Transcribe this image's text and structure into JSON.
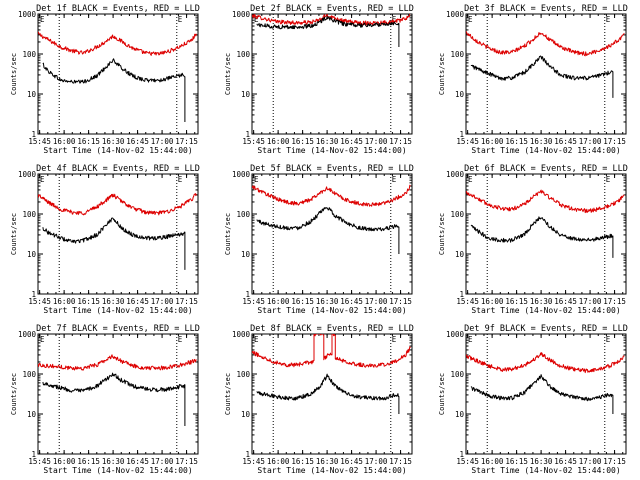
{
  "figure": {
    "colors": {
      "events": "#000000",
      "lld": "#dd0000",
      "axes": "#000000",
      "background": "#ffffff"
    }
  },
  "chart_data": [
    {
      "type": "line",
      "title": "Det 1f BLACK = Events, RED = LLD",
      "xlabel": "Start Time (14-Nov-02 15:44:00)",
      "ylabel": "Counts/sec",
      "xlim": [
        "15:44",
        "17:22"
      ],
      "ylim": [
        1,
        1000
      ],
      "yscale": "log",
      "x_tick_labels": [
        "15:45",
        "16:00",
        "16:15",
        "16:30",
        "16:45",
        "17:00",
        "17:15"
      ],
      "y_tick_labels": [
        "1",
        "10",
        "100",
        "1000"
      ],
      "corner_labels": {
        "left": "E",
        "right": "E"
      },
      "vertical_dotted_lines": [
        "15:57",
        "17:09"
      ],
      "series": [
        {
          "x": [
            "15:44",
            "15:50",
            "15:58",
            "16:05",
            "16:12",
            "16:20",
            "16:25",
            "16:30",
            "16:35",
            "16:42",
            "16:50",
            "16:58",
            "17:05",
            "17:12",
            "17:18",
            "17:21"
          ],
          "values": [
            320,
            230,
            150,
            120,
            105,
            150,
            200,
            280,
            210,
            140,
            105,
            100,
            120,
            160,
            220,
            320
          ]
        },
        {
          "x": [
            "15:47",
            "15:50",
            "15:58",
            "16:05",
            "16:12",
            "16:20",
            "16:25",
            "16:30",
            "16:35",
            "16:42",
            "16:50",
            "16:58",
            "17:05",
            "17:12",
            "17:14"
          ],
          "values": [
            55,
            38,
            22,
            20,
            20,
            28,
            45,
            70,
            45,
            28,
            22,
            22,
            25,
            30,
            2
          ]
        }
      ]
    },
    {
      "type": "line",
      "title": "Det 2f BLACK = Events, RED = LLD",
      "xlabel": "Start Time (14-Nov-02 15:44:00)",
      "ylabel": "Counts/sec",
      "xlim": [
        "15:44",
        "17:22"
      ],
      "ylim": [
        1,
        1000
      ],
      "yscale": "log",
      "x_tick_labels": [
        "15:45",
        "16:00",
        "16:15",
        "16:30",
        "16:45",
        "17:00",
        "17:15"
      ],
      "y_tick_labels": [
        "1",
        "10",
        "100",
        "1000"
      ],
      "corner_labels": {
        "left": "E",
        "right": "E"
      },
      "vertical_dotted_lines": [
        "15:57",
        "17:09"
      ],
      "series": [
        {
          "x": [
            "15:44",
            "15:50",
            "15:58",
            "16:05",
            "16:12",
            "16:20",
            "16:25",
            "16:30",
            "16:35",
            "16:42",
            "16:50",
            "16:58",
            "17:05",
            "17:12",
            "17:18",
            "17:21"
          ],
          "values": [
            900,
            800,
            650,
            620,
            600,
            620,
            700,
            950,
            780,
            650,
            600,
            600,
            620,
            650,
            750,
            1000
          ]
        },
        {
          "x": [
            "15:47",
            "15:50",
            "15:58",
            "16:05",
            "16:12",
            "16:20",
            "16:25",
            "16:30",
            "16:35",
            "16:42",
            "16:50",
            "16:58",
            "17:05",
            "17:12",
            "17:14"
          ],
          "values": [
            550,
            520,
            480,
            470,
            470,
            500,
            600,
            850,
            650,
            540,
            520,
            530,
            560,
            600,
            150
          ]
        }
      ]
    },
    {
      "type": "line",
      "title": "Det 3f BLACK = Events, RED = LLD",
      "xlabel": "Start Time (14-Nov-02 15:44:00)",
      "ylabel": "Counts/sec",
      "xlim": [
        "15:44",
        "17:22"
      ],
      "ylim": [
        1,
        1000
      ],
      "yscale": "log",
      "x_tick_labels": [
        "15:45",
        "16:00",
        "16:15",
        "16:30",
        "16:45",
        "17:00",
        "17:15"
      ],
      "y_tick_labels": [
        "1",
        "10",
        "100",
        "1000"
      ],
      "corner_labels": {
        "left": "E",
        "right": "E"
      },
      "vertical_dotted_lines": [
        "15:57",
        "17:09"
      ],
      "series": [
        {
          "x": [
            "15:44",
            "15:50",
            "15:58",
            "16:05",
            "16:12",
            "16:20",
            "16:25",
            "16:30",
            "16:35",
            "16:42",
            "16:50",
            "16:58",
            "17:05",
            "17:12",
            "17:18",
            "17:21"
          ],
          "values": [
            350,
            220,
            140,
            110,
            110,
            160,
            230,
            350,
            230,
            150,
            110,
            100,
            120,
            160,
            230,
            330
          ]
        },
        {
          "x": [
            "15:47",
            "15:50",
            "15:58",
            "16:05",
            "16:12",
            "16:20",
            "16:25",
            "16:30",
            "16:35",
            "16:42",
            "16:50",
            "16:58",
            "17:05",
            "17:12",
            "17:14"
          ],
          "values": [
            50,
            45,
            32,
            25,
            25,
            35,
            55,
            85,
            50,
            30,
            25,
            25,
            28,
            35,
            8
          ]
        }
      ]
    },
    {
      "type": "line",
      "title": "Det 4f BLACK = Events, RED = LLD",
      "xlabel": "Start Time (14-Nov-02 15:44:00)",
      "ylabel": "Counts/sec",
      "xlim": [
        "15:44",
        "17:22"
      ],
      "ylim": [
        1,
        1000
      ],
      "yscale": "log",
      "x_tick_labels": [
        "15:45",
        "16:00",
        "16:15",
        "16:30",
        "16:45",
        "17:00",
        "17:15"
      ],
      "y_tick_labels": [
        "1",
        "10",
        "100",
        "1000"
      ],
      "corner_labels": {
        "left": "E",
        "right": "E"
      },
      "vertical_dotted_lines": [
        "15:57",
        "17:09"
      ],
      "series": [
        {
          "x": [
            "15:44",
            "15:50",
            "15:58",
            "16:05",
            "16:12",
            "16:20",
            "16:25",
            "16:30",
            "16:35",
            "16:42",
            "16:50",
            "16:58",
            "17:05",
            "17:12",
            "17:18",
            "17:21"
          ],
          "values": [
            300,
            200,
            130,
            110,
            105,
            150,
            210,
            300,
            210,
            140,
            110,
            105,
            120,
            160,
            230,
            320
          ]
        },
        {
          "x": [
            "15:47",
            "15:50",
            "15:58",
            "16:05",
            "16:12",
            "16:20",
            "16:25",
            "16:30",
            "16:35",
            "16:42",
            "16:50",
            "16:58",
            "17:05",
            "17:12",
            "17:14"
          ],
          "values": [
            45,
            35,
            25,
            20,
            22,
            30,
            50,
            80,
            45,
            30,
            25,
            25,
            28,
            32,
            4
          ]
        }
      ]
    },
    {
      "type": "line",
      "title": "Det 5f BLACK = Events, RED = LLD",
      "xlabel": "Start Time (14-Nov-02 15:44:00)",
      "ylabel": "Counts/sec",
      "xlim": [
        "15:44",
        "17:22"
      ],
      "ylim": [
        1,
        1000
      ],
      "yscale": "log",
      "x_tick_labels": [
        "15:45",
        "16:00",
        "16:15",
        "16:30",
        "16:45",
        "17:00",
        "17:15"
      ],
      "y_tick_labels": [
        "1",
        "10",
        "100",
        "1000"
      ],
      "corner_labels": {
        "left": "E",
        "right": "E"
      },
      "vertical_dotted_lines": [
        "15:57",
        "17:09"
      ],
      "series": [
        {
          "x": [
            "15:44",
            "15:50",
            "15:58",
            "16:05",
            "16:12",
            "16:20",
            "16:25",
            "16:30",
            "16:35",
            "16:42",
            "16:50",
            "16:58",
            "17:05",
            "17:12",
            "17:18",
            "17:21"
          ],
          "values": [
            480,
            360,
            250,
            200,
            180,
            230,
            320,
            450,
            320,
            220,
            180,
            170,
            190,
            240,
            330,
            500
          ]
        },
        {
          "x": [
            "15:47",
            "15:50",
            "15:58",
            "16:05",
            "16:12",
            "16:20",
            "16:25",
            "16:30",
            "16:35",
            "16:42",
            "16:50",
            "16:58",
            "17:05",
            "17:12",
            "17:14"
          ],
          "values": [
            70,
            60,
            50,
            45,
            45,
            65,
            100,
            150,
            90,
            60,
            45,
            40,
            42,
            50,
            10
          ]
        }
      ]
    },
    {
      "type": "line",
      "title": "Det 6f BLACK = Events, RED = LLD",
      "xlabel": "Start Time (14-Nov-02 15:44:00)",
      "ylabel": "Counts/sec",
      "xlim": [
        "15:44",
        "17:22"
      ],
      "ylim": [
        1,
        1000
      ],
      "yscale": "log",
      "x_tick_labels": [
        "15:45",
        "16:00",
        "16:15",
        "16:30",
        "16:45",
        "17:00",
        "17:15"
      ],
      "y_tick_labels": [
        "1",
        "10",
        "100",
        "1000"
      ],
      "corner_labels": {
        "left": "E",
        "right": "E"
      },
      "vertical_dotted_lines": [
        "15:57",
        "17:09"
      ],
      "series": [
        {
          "x": [
            "15:44",
            "15:50",
            "15:58",
            "16:05",
            "16:12",
            "16:20",
            "16:25",
            "16:30",
            "16:35",
            "16:42",
            "16:50",
            "16:58",
            "17:05",
            "17:12",
            "17:18",
            "17:21"
          ],
          "values": [
            350,
            260,
            170,
            140,
            130,
            180,
            260,
            380,
            260,
            170,
            130,
            120,
            130,
            160,
            220,
            300
          ]
        },
        {
          "x": [
            "15:47",
            "15:50",
            "15:58",
            "16:05",
            "16:12",
            "16:20",
            "16:25",
            "16:30",
            "16:35",
            "16:42",
            "16:50",
            "16:58",
            "17:05",
            "17:12",
            "17:14"
          ],
          "values": [
            50,
            40,
            25,
            22,
            22,
            32,
            55,
            85,
            50,
            30,
            24,
            22,
            24,
            28,
            8
          ]
        }
      ]
    },
    {
      "type": "line",
      "title": "Det 7f BLACK = Events, RED = LLD",
      "xlabel": "Start Time (14-Nov-02 15:44:00)",
      "ylabel": "Counts/sec",
      "xlim": [
        "15:44",
        "17:22"
      ],
      "ylim": [
        1,
        1000
      ],
      "yscale": "log",
      "x_tick_labels": [
        "15:45",
        "16:00",
        "16:15",
        "16:30",
        "16:45",
        "17:00",
        "17:15"
      ],
      "y_tick_labels": [
        "1",
        "10",
        "100",
        "1000"
      ],
      "corner_labels": {
        "left": "E",
        "right": "E"
      },
      "vertical_dotted_lines": [
        "15:57",
        "17:09"
      ],
      "series": [
        {
          "x": [
            "15:44",
            "15:50",
            "15:58",
            "16:05",
            "16:12",
            "16:20",
            "16:25",
            "16:30",
            "16:35",
            "16:42",
            "16:50",
            "16:58",
            "17:05",
            "17:12",
            "17:18",
            "17:21"
          ],
          "values": [
            170,
            160,
            150,
            140,
            140,
            170,
            220,
            280,
            210,
            160,
            140,
            140,
            150,
            170,
            200,
            230
          ]
        },
        {
          "x": [
            "15:47",
            "15:50",
            "15:58",
            "16:05",
            "16:12",
            "16:20",
            "16:25",
            "16:30",
            "16:35",
            "16:42",
            "16:50",
            "16:58",
            "17:05",
            "17:12",
            "17:14"
          ],
          "values": [
            60,
            55,
            45,
            38,
            38,
            50,
            70,
            100,
            70,
            50,
            42,
            40,
            42,
            50,
            5
          ]
        }
      ]
    },
    {
      "type": "line",
      "title": "Det 8f BLACK = Events, RED = LLD",
      "xlabel": "Start Time (14-Nov-02 15:44:00)",
      "ylabel": "Counts/sec",
      "xlim": [
        "15:44",
        "17:22"
      ],
      "ylim": [
        1,
        1000
      ],
      "yscale": "log",
      "x_tick_labels": [
        "15:45",
        "16:00",
        "16:15",
        "16:30",
        "16:45",
        "17:00",
        "17:15"
      ],
      "y_tick_labels": [
        "1",
        "10",
        "100",
        "1000"
      ],
      "corner_labels": {
        "left": "E",
        "right": "E"
      },
      "vertical_dotted_lines": [
        "15:57",
        "17:09"
      ],
      "series": [
        {
          "x": [
            "15:44",
            "15:50",
            "15:58",
            "16:05",
            "16:12",
            "16:20",
            "16:22",
            "16:26",
            "16:28",
            "16:31",
            "16:33",
            "16:35",
            "16:42",
            "16:50",
            "16:58",
            "17:05",
            "17:12",
            "17:18",
            "17:21"
          ],
          "values": [
            350,
            270,
            200,
            170,
            170,
            200,
            1000,
            1000,
            250,
            300,
            1000,
            250,
            200,
            170,
            160,
            170,
            210,
            300,
            450
          ]
        },
        {
          "x": [
            "15:47",
            "15:50",
            "15:58",
            "16:05",
            "16:12",
            "16:20",
            "16:25",
            "16:30",
            "16:35",
            "16:42",
            "16:50",
            "16:58",
            "17:05",
            "17:12",
            "17:14"
          ],
          "values": [
            35,
            32,
            28,
            25,
            25,
            32,
            45,
            90,
            50,
            32,
            26,
            25,
            25,
            30,
            10
          ]
        }
      ]
    },
    {
      "type": "line",
      "title": "Det 9f BLACK = Events, RED = LLD",
      "xlabel": "Start Time (14-Nov-02 15:44:00)",
      "ylabel": "Counts/sec",
      "xlim": [
        "15:44",
        "17:22"
      ],
      "ylim": [
        1,
        1000
      ],
      "yscale": "log",
      "x_tick_labels": [
        "15:45",
        "16:00",
        "16:15",
        "16:30",
        "16:45",
        "17:00",
        "17:15"
      ],
      "y_tick_labels": [
        "1",
        "10",
        "100",
        "1000"
      ],
      "corner_labels": {
        "left": "E",
        "right": "E"
      },
      "vertical_dotted_lines": [
        "15:57",
        "17:09"
      ],
      "series": [
        {
          "x": [
            "15:44",
            "15:50",
            "15:58",
            "16:05",
            "16:12",
            "16:20",
            "16:25",
            "16:30",
            "16:35",
            "16:42",
            "16:50",
            "16:58",
            "17:05",
            "17:12",
            "17:18",
            "17:21"
          ],
          "values": [
            280,
            220,
            160,
            130,
            130,
            170,
            220,
            320,
            230,
            160,
            130,
            120,
            130,
            160,
            210,
            280
          ]
        },
        {
          "x": [
            "15:47",
            "15:50",
            "15:58",
            "16:05",
            "16:12",
            "16:20",
            "16:25",
            "16:30",
            "16:35",
            "16:42",
            "16:50",
            "16:58",
            "17:05",
            "17:12",
            "17:14"
          ],
          "values": [
            45,
            40,
            28,
            25,
            25,
            35,
            55,
            90,
            50,
            32,
            26,
            24,
            26,
            30,
            10
          ]
        }
      ]
    }
  ]
}
